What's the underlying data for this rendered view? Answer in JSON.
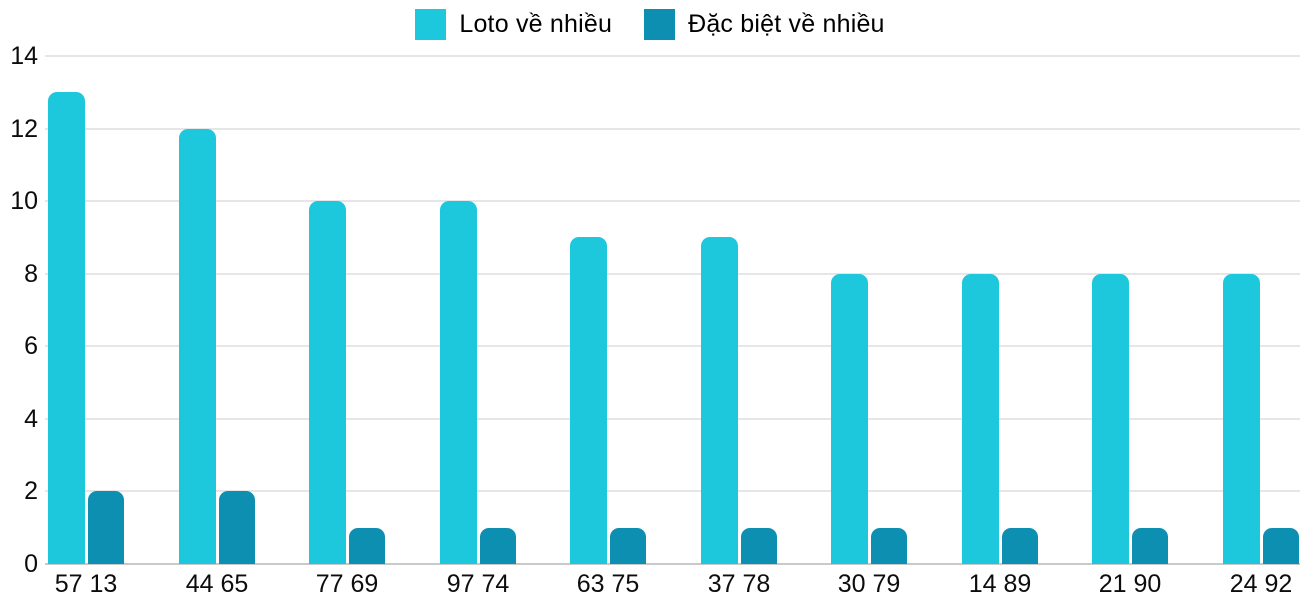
{
  "legend": {
    "items": [
      {
        "label": "Loto về nhiều",
        "color": "#1dc7dc"
      },
      {
        "label": "Đặc biệt về nhiều",
        "color": "#0c8fb0"
      }
    ]
  },
  "chart_data": {
    "type": "bar",
    "title": "",
    "xlabel": "",
    "ylabel": "",
    "categories": [
      "57 13",
      "44 65",
      "77 69",
      "97 74",
      "63 75",
      "37 78",
      "30 79",
      "14 89",
      "21 90",
      "24 92"
    ],
    "series": [
      {
        "name": "Loto về nhiều",
        "color": "#1dc7dc",
        "values": [
          13,
          12,
          10,
          10,
          9,
          9,
          8,
          8,
          8,
          8
        ]
      },
      {
        "name": "Đặc biệt về nhiều",
        "color": "#0c8fb0",
        "values": [
          2,
          2,
          1,
          1,
          1,
          1,
          1,
          1,
          1,
          1
        ]
      }
    ],
    "ylim": [
      0,
      14
    ],
    "yticks": [
      0,
      2,
      4,
      6,
      8,
      10,
      12,
      14
    ],
    "grid": true,
    "legend_position": "top",
    "colors": {
      "gridline": "#e6e6e6",
      "baseline": "#c9c9c9",
      "tick_text": "#0d0d0d",
      "background": "#ffffff"
    }
  }
}
